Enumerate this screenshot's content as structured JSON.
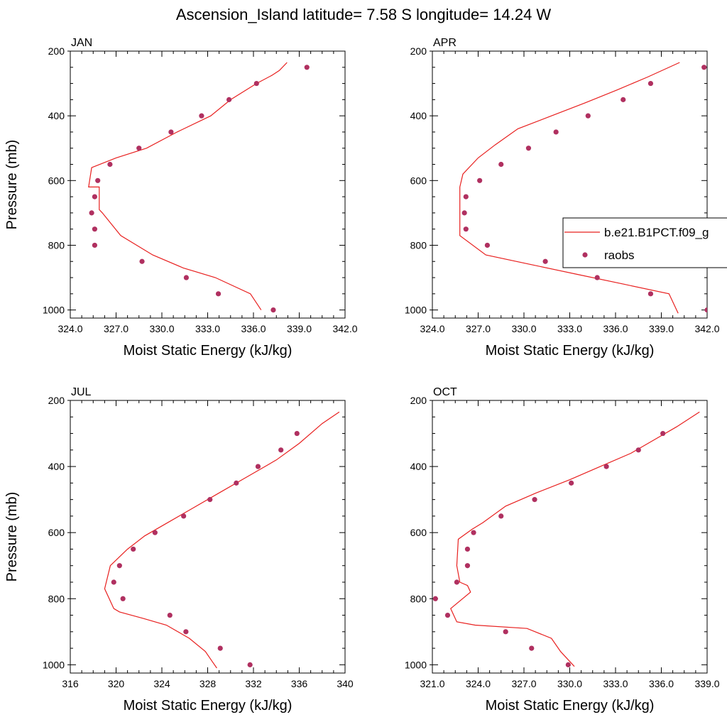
{
  "figure": {
    "title": "Ascension_Island  latitude= 7.58 S longitude= 14.24 W"
  },
  "colors": {
    "model_line": "#e8201f",
    "obs_marker": "#b03060"
  },
  "chart_data": [
    {
      "type": "line",
      "panel": "JAN",
      "xlabel": "Moist Static Energy (kJ/kg)",
      "ylabel": "Pressure (mb)",
      "xlim": [
        324,
        342
      ],
      "ylim": [
        1025,
        200
      ],
      "xticks": [
        "324.0",
        "327.0",
        "330.0",
        "333.0",
        "336.0",
        "339.0",
        "342.0"
      ],
      "yticks": [
        "200",
        "400",
        "600",
        "800",
        "1000"
      ],
      "series": [
        {
          "name": "b.e21.B1PCT.f09_g",
          "kind": "line",
          "x": [
            338.2,
            337.7,
            337.2,
            336.2,
            334.5,
            333.2,
            331.0,
            329.0,
            327.0,
            325.4,
            325.2,
            325.9,
            325.9,
            326.1,
            327.3,
            329.4,
            331.4,
            333.5,
            335.8,
            336.5
          ],
          "y": [
            235,
            260,
            275,
            300,
            350,
            400,
            450,
            500,
            530,
            560,
            620,
            620,
            690,
            700,
            770,
            830,
            870,
            900,
            950,
            1000
          ]
        },
        {
          "name": "raobs",
          "kind": "scatter",
          "x": [
            339.5,
            336.2,
            334.4,
            332.6,
            330.6,
            328.5,
            326.6,
            325.8,
            325.6,
            325.4,
            325.6,
            325.6,
            328.7,
            331.6,
            333.7,
            337.3
          ],
          "y": [
            250,
            300,
            350,
            400,
            450,
            500,
            550,
            600,
            650,
            700,
            750,
            800,
            850,
            900,
            950,
            1000
          ]
        }
      ]
    },
    {
      "type": "line",
      "panel": "APR",
      "xlabel": "Moist Static Energy (kJ/kg)",
      "ylabel": "",
      "xlim": [
        324,
        342
      ],
      "ylim": [
        1025,
        200
      ],
      "xticks": [
        "324.0",
        "327.0",
        "330.0",
        "333.0",
        "336.0",
        "339.0",
        "342.0"
      ],
      "yticks": [
        "200",
        "400",
        "600",
        "800",
        "1000"
      ],
      "legend": {
        "position": "right",
        "entries": [
          "b.e21.B1PCT.f09_g",
          "raobs"
        ]
      },
      "series": [
        {
          "name": "b.e21.B1PCT.f09_g",
          "kind": "line",
          "x": [
            340.2,
            338.1,
            336.1,
            334.0,
            331.8,
            329.6,
            328.1,
            327.0,
            326.0,
            325.8,
            325.8,
            325.8,
            325.8,
            325.8,
            327.5,
            330.5,
            333.5,
            336.5,
            339.5,
            340.1
          ],
          "y": [
            235,
            280,
            320,
            360,
            400,
            440,
            490,
            530,
            580,
            620,
            650,
            700,
            740,
            770,
            830,
            860,
            890,
            920,
            950,
            1010
          ]
        },
        {
          "name": "raobs",
          "kind": "scatter",
          "x": [
            341.8,
            338.3,
            336.5,
            334.2,
            332.1,
            330.3,
            328.5,
            327.1,
            326.2,
            326.1,
            326.2,
            327.6,
            331.4,
            334.8,
            338.3,
            342.0
          ],
          "y": [
            250,
            300,
            350,
            400,
            450,
            500,
            550,
            600,
            650,
            700,
            750,
            800,
            850,
            900,
            950,
            1000
          ]
        }
      ]
    },
    {
      "type": "line",
      "panel": "JUL",
      "xlabel": "Moist Static Energy (kJ/kg)",
      "ylabel": "Pressure (mb)",
      "xlim": [
        316,
        340
      ],
      "ylim": [
        1025,
        200
      ],
      "xticks": [
        "316",
        "320",
        "324",
        "328",
        "332",
        "336",
        "340"
      ],
      "yticks": [
        "200",
        "400",
        "600",
        "800",
        "1000"
      ],
      "series": [
        {
          "name": "b.e21.B1PCT.f09_g",
          "kind": "line",
          "x": [
            339.5,
            338.0,
            336.0,
            334.0,
            331.5,
            329.0,
            326.5,
            324.5,
            322.5,
            321.0,
            319.5,
            319.0,
            319.8,
            320.3,
            322.4,
            324.4,
            326.4,
            327.8,
            328.4,
            328.8
          ],
          "y": [
            235,
            270,
            330,
            380,
            430,
            480,
            530,
            570,
            610,
            650,
            700,
            770,
            830,
            840,
            860,
            880,
            920,
            960,
            990,
            1010
          ]
        },
        {
          "name": "raobs",
          "kind": "scatter",
          "x": [
            335.8,
            334.4,
            332.4,
            330.5,
            328.2,
            325.9,
            323.4,
            321.5,
            320.3,
            319.8,
            320.6,
            324.7,
            326.1,
            329.1,
            331.7
          ],
          "y": [
            300,
            350,
            400,
            450,
            500,
            550,
            600,
            650,
            700,
            750,
            800,
            850,
            900,
            950,
            1000
          ]
        }
      ]
    },
    {
      "type": "line",
      "panel": "OCT",
      "xlabel": "Moist Static Energy (kJ/kg)",
      "ylabel": "",
      "xlim": [
        321,
        339
      ],
      "ylim": [
        1025,
        200
      ],
      "xticks": [
        "321.0",
        "324.0",
        "327.0",
        "330.0",
        "333.0",
        "336.0",
        "339.0"
      ],
      "yticks": [
        "200",
        "400",
        "600",
        "800",
        "1000"
      ],
      "series": [
        {
          "name": "b.e21.B1PCT.f09_g",
          "kind": "line",
          "x": [
            338.5,
            337.0,
            335.5,
            334.0,
            332.0,
            330.0,
            327.8,
            325.8,
            324.3,
            323.6,
            322.7,
            322.6,
            322.8,
            323.3,
            323.5,
            322.2,
            322.6,
            323.8,
            327.2,
            328.8,
            329.4,
            330.3
          ],
          "y": [
            235,
            280,
            320,
            360,
            400,
            440,
            480,
            520,
            570,
            590,
            620,
            700,
            750,
            760,
            780,
            830,
            870,
            880,
            890,
            920,
            960,
            1005
          ]
        },
        {
          "name": "raobs",
          "kind": "scatter",
          "x": [
            336.1,
            334.5,
            332.4,
            330.1,
            327.7,
            325.5,
            323.7,
            323.3,
            323.3,
            322.6,
            321.2,
            322.0,
            325.8,
            327.5,
            329.9
          ],
          "y": [
            300,
            350,
            400,
            450,
            500,
            550,
            600,
            650,
            700,
            750,
            800,
            850,
            900,
            950,
            1000
          ]
        }
      ]
    }
  ]
}
